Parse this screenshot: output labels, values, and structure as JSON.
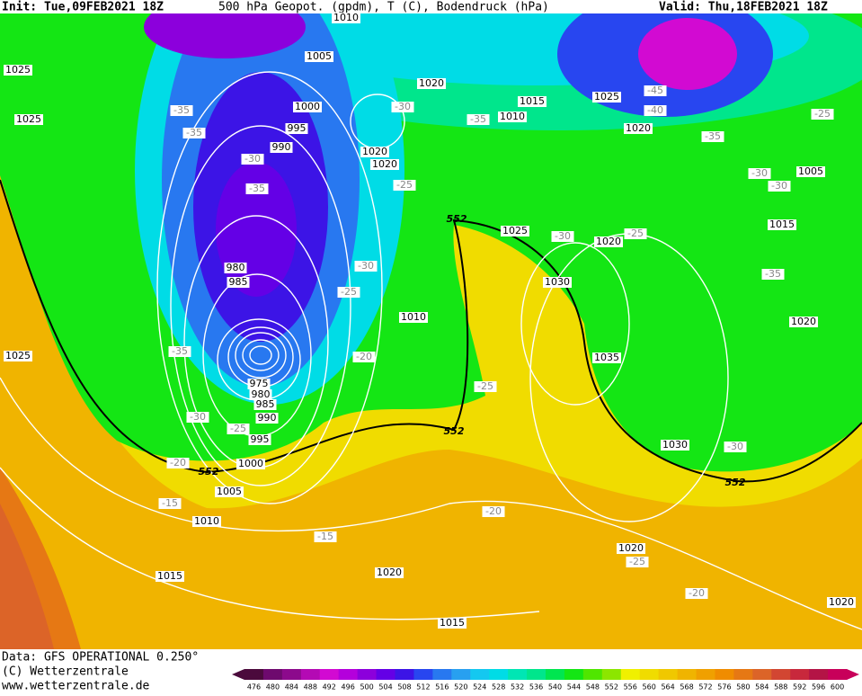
{
  "header": {
    "init": "Init: Tue,09FEB2021 18Z",
    "title": "500 hPa Geopot. (gpdm), T (C), Bodendruck (hPa)",
    "valid": "Valid: Thu,18FEB2021 18Z"
  },
  "footer": {
    "data": "Data: GFS OPERATIONAL 0.250°",
    "copyright": "(C) Wetterzentrale",
    "url": "www.wetterzentrale.de"
  },
  "pressure_labels": [
    "1010",
    "1025",
    "1005",
    "1020",
    "1015",
    "1025",
    "1025",
    "1000",
    "995",
    "1010",
    "1020",
    "990",
    "1020",
    "1020",
    "1005",
    "1015",
    "1025",
    "1020",
    "980",
    "985",
    "1030",
    "1010",
    "1020",
    "1035",
    "1025",
    "975",
    "980",
    "985",
    "990",
    "995",
    "1030",
    "1000",
    "1005",
    "1010",
    "1020",
    "1015",
    "1020",
    "1020",
    "1015"
  ],
  "temperature_labels": [
    "-45",
    "-40",
    "-35",
    "-35",
    "-30",
    "-35",
    "-35",
    "-25",
    "-30",
    "-35",
    "-25",
    "-30",
    "-30",
    "-30",
    "-25",
    "-30",
    "-25",
    "-35",
    "-35",
    "-20",
    "-25",
    "-30",
    "-25",
    "-30",
    "-20",
    "-15",
    "-20",
    "-15",
    "-25",
    "-20"
  ],
  "contour_labels": [
    "552",
    "552",
    "552",
    "552"
  ],
  "colorbar": {
    "values": [
      476,
      480,
      484,
      488,
      492,
      496,
      500,
      504,
      508,
      512,
      516,
      520,
      524,
      528,
      532,
      536,
      540,
      544,
      548,
      552,
      556,
      560,
      564,
      568,
      572,
      576,
      580,
      584,
      588,
      592,
      596,
      600
    ],
    "colors": [
      "#4b0a3c",
      "#6e0a6e",
      "#8c0a8c",
      "#b40ab4",
      "#d20ad2",
      "#b400dc",
      "#8c00dc",
      "#6400e6",
      "#3c14e6",
      "#2846f0",
      "#2878f0",
      "#28a0f0",
      "#14c8f0",
      "#00dce6",
      "#00e6b4",
      "#00e68c",
      "#00e650",
      "#14e614",
      "#50e600",
      "#8ce600",
      "#f0f000",
      "#f0dc00",
      "#f0c800",
      "#f0b400",
      "#f0a000",
      "#f08c00",
      "#e67814",
      "#dc6428",
      "#d24632",
      "#c8283c",
      "#b41446",
      "#c8005a"
    ]
  }
}
